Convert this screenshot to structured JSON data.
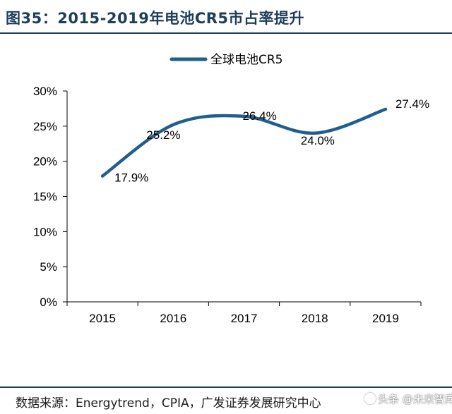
{
  "title": "图35：2015-2019年电池CR5市占率提升",
  "chart_data": {
    "type": "line",
    "title": "2015-2019年电池CR5市占率提升",
    "categories": [
      "2015",
      "2016",
      "2017",
      "2018",
      "2019"
    ],
    "series": [
      {
        "name": "全球电池CR5",
        "values": [
          17.9,
          25.2,
          26.4,
          24.0,
          27.4
        ],
        "labels": [
          "17.9%",
          "25.2%",
          "26.4%",
          "24.0%",
          "27.4%"
        ],
        "color": "#1f5f8f"
      }
    ],
    "ylim": [
      0,
      30
    ],
    "yticks": [
      0,
      5,
      10,
      15,
      20,
      25,
      30
    ],
    "ytick_labels": [
      "0%",
      "5%",
      "10%",
      "15%",
      "20%",
      "25%",
      "30%"
    ],
    "xlabel": "",
    "ylabel": "",
    "grid": false,
    "legend": "top-center",
    "smooth": true
  },
  "source": "数据来源：Energytrend，CPIA，广发证券发展研究中心",
  "watermark": "头条 @未来智库",
  "colors": {
    "title": "#1f3e5a",
    "series": "#1f5f8f",
    "axis": "#000000"
  }
}
